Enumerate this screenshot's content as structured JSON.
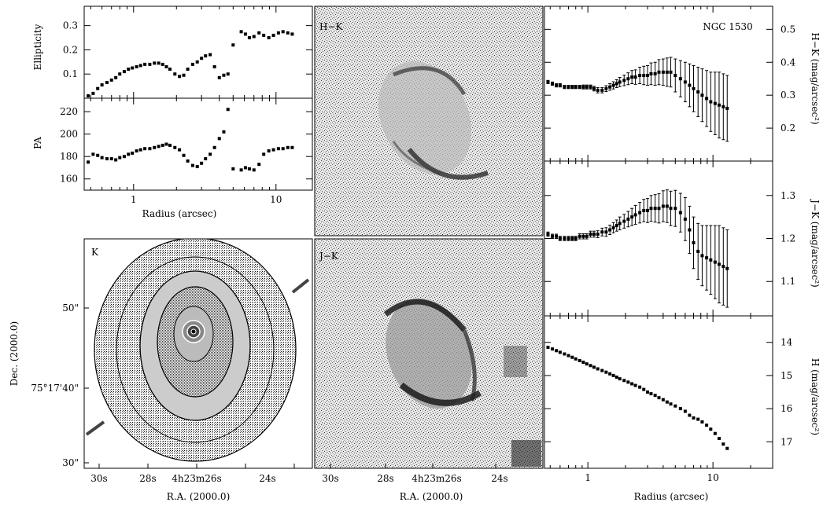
{
  "figure": {
    "object_name": "NGC 1530",
    "ellipticity_panel": {
      "ylabel": "Ellipticity",
      "yticks": [
        "0.1",
        "0.2",
        "0.3"
      ]
    },
    "pa_panel": {
      "ylabel": "PA",
      "yticks": [
        "160",
        "180",
        "200",
        "220"
      ],
      "xticks": [
        "1",
        "10"
      ],
      "xlabel": "Radius (arcsec)"
    },
    "k_image": {
      "label": "K",
      "xticks": [
        "30s",
        "28s",
        "4h23m26s",
        "24s"
      ],
      "xlabel": "R.A. (2000.0)",
      "yticks": [
        "50\"",
        "75°17'40\"",
        "30\""
      ],
      "ylabel": "Dec. (2000.0)"
    },
    "hk_image": {
      "label": "H−K"
    },
    "jk_image": {
      "label": "J−K",
      "xticks": [
        "30s",
        "28s",
        "4h23m26s",
        "24s"
      ],
      "xlabel": "R.A. (2000.0)"
    },
    "hk_profile": {
      "ylabel": "H−K (mag/arcsec²)",
      "yticks": [
        "0.2",
        "0.3",
        "0.4",
        "0.5"
      ]
    },
    "jk_profile": {
      "ylabel": "J−K (mag/arcsec²)",
      "yticks": [
        "1.1",
        "1.2",
        "1.3"
      ]
    },
    "h_profile": {
      "ylabel": "H (mag/arcsec²)",
      "yticks": [
        "14",
        "15",
        "16",
        "17"
      ],
      "xticks": [
        "1",
        "10"
      ],
      "xlabel": "Radius (arcsec)"
    }
  },
  "chart_data": [
    {
      "type": "scatter",
      "title": "",
      "xlabel": "",
      "ylabel": "Ellipticity",
      "xscale": "log",
      "xlim": [
        0.45,
        18
      ],
      "ylim": [
        0.0,
        0.38
      ],
      "x": [
        0.48,
        0.52,
        0.56,
        0.6,
        0.65,
        0.7,
        0.75,
        0.8,
        0.86,
        0.92,
        0.98,
        1.05,
        1.12,
        1.2,
        1.3,
        1.4,
        1.5,
        1.6,
        1.7,
        1.8,
        1.95,
        2.1,
        2.25,
        2.4,
        2.6,
        2.8,
        3.0,
        3.2,
        3.45,
        3.7,
        4.0,
        4.3,
        4.6,
        5.0,
        5.7,
        6.1,
        6.5,
        7.0,
        7.6,
        8.2,
        8.9,
        9.6,
        10.4,
        11.2,
        12.1,
        13.0
      ],
      "y": [
        0.01,
        0.02,
        0.04,
        0.055,
        0.065,
        0.075,
        0.085,
        0.1,
        0.11,
        0.12,
        0.125,
        0.13,
        0.135,
        0.14,
        0.14,
        0.145,
        0.145,
        0.14,
        0.13,
        0.12,
        0.1,
        0.09,
        0.095,
        0.12,
        0.14,
        0.15,
        0.165,
        0.175,
        0.18,
        0.13,
        0.085,
        0.095,
        0.1,
        0.22,
        0.275,
        0.265,
        0.25,
        0.255,
        0.27,
        0.26,
        0.25,
        0.26,
        0.27,
        0.275,
        0.27,
        0.265
      ]
    },
    {
      "type": "scatter",
      "title": "",
      "xlabel": "Radius (arcsec)",
      "ylabel": "PA",
      "xscale": "log",
      "xlim": [
        0.45,
        18
      ],
      "ylim": [
        150,
        232
      ],
      "x": [
        0.48,
        0.52,
        0.56,
        0.6,
        0.65,
        0.7,
        0.75,
        0.8,
        0.86,
        0.92,
        0.98,
        1.05,
        1.12,
        1.2,
        1.3,
        1.4,
        1.5,
        1.6,
        1.7,
        1.8,
        1.95,
        2.1,
        2.25,
        2.4,
        2.6,
        2.8,
        3.0,
        3.2,
        3.45,
        3.7,
        4.0,
        4.3,
        4.6,
        5.0,
        5.7,
        6.1,
        6.5,
        7.0,
        7.6,
        8.2,
        8.9,
        9.6,
        10.4,
        11.2,
        12.1,
        13.0
      ],
      "y": [
        175,
        182,
        181,
        179,
        178,
        178,
        177,
        179,
        180,
        182,
        183,
        185,
        186,
        187,
        187,
        188,
        189,
        190,
        191,
        190,
        188,
        186,
        181,
        176,
        172,
        171,
        174,
        178,
        182,
        188,
        196,
        202,
        222,
        169,
        168,
        170,
        169,
        168,
        173,
        182,
        185,
        186,
        187,
        187,
        188,
        188
      ]
    },
    {
      "type": "scatter",
      "title": "",
      "xlabel": "",
      "ylabel": "H−K (mag/arcsec²)",
      "xscale": "log",
      "xlim": [
        0.45,
        30
      ],
      "ylim": [
        0.1,
        0.57
      ],
      "x": [
        0.48,
        0.52,
        0.56,
        0.6,
        0.65,
        0.7,
        0.75,
        0.8,
        0.86,
        0.92,
        0.98,
        1.05,
        1.12,
        1.2,
        1.3,
        1.4,
        1.5,
        1.6,
        1.7,
        1.8,
        1.95,
        2.1,
        2.25,
        2.4,
        2.6,
        2.8,
        3.0,
        3.2,
        3.45,
        3.7,
        4.0,
        4.3,
        4.6,
        5.0,
        5.5,
        6.0,
        6.5,
        7.0,
        7.6,
        8.2,
        8.9,
        9.6,
        10.4,
        11.2,
        12.1,
        13.0
      ],
      "y": [
        0.34,
        0.335,
        0.33,
        0.33,
        0.325,
        0.325,
        0.325,
        0.325,
        0.325,
        0.325,
        0.325,
        0.325,
        0.32,
        0.315,
        0.315,
        0.32,
        0.325,
        0.33,
        0.335,
        0.34,
        0.345,
        0.35,
        0.355,
        0.355,
        0.36,
        0.36,
        0.36,
        0.365,
        0.365,
        0.37,
        0.37,
        0.37,
        0.37,
        0.36,
        0.35,
        0.34,
        0.33,
        0.32,
        0.31,
        0.3,
        0.29,
        0.28,
        0.275,
        0.27,
        0.265,
        0.26
      ],
      "yerr": [
        0.005,
        0.005,
        0.005,
        0.005,
        0.005,
        0.005,
        0.005,
        0.005,
        0.005,
        0.006,
        0.006,
        0.006,
        0.007,
        0.008,
        0.008,
        0.009,
        0.01,
        0.011,
        0.012,
        0.014,
        0.016,
        0.018,
        0.02,
        0.022,
        0.025,
        0.028,
        0.03,
        0.033,
        0.035,
        0.038,
        0.04,
        0.043,
        0.045,
        0.05,
        0.055,
        0.06,
        0.065,
        0.07,
        0.075,
        0.08,
        0.085,
        0.09,
        0.095,
        0.1,
        0.1,
        0.1
      ]
    },
    {
      "type": "scatter",
      "title": "",
      "xlabel": "",
      "ylabel": "J−K (mag/arcsec²)",
      "xscale": "log",
      "xlim": [
        0.45,
        30
      ],
      "ylim": [
        1.02,
        1.38
      ],
      "x": [
        0.48,
        0.52,
        0.56,
        0.6,
        0.65,
        0.7,
        0.75,
        0.8,
        0.86,
        0.92,
        0.98,
        1.05,
        1.12,
        1.2,
        1.3,
        1.4,
        1.5,
        1.6,
        1.7,
        1.8,
        1.95,
        2.1,
        2.25,
        2.4,
        2.6,
        2.8,
        3.0,
        3.2,
        3.45,
        3.7,
        4.0,
        4.3,
        4.6,
        5.0,
        5.5,
        6.0,
        6.5,
        7.0,
        7.6,
        8.2,
        8.9,
        9.6,
        10.4,
        11.2,
        12.1,
        13.0
      ],
      "y": [
        1.21,
        1.205,
        1.205,
        1.2,
        1.2,
        1.2,
        1.2,
        1.2,
        1.205,
        1.205,
        1.205,
        1.21,
        1.21,
        1.21,
        1.215,
        1.215,
        1.22,
        1.225,
        1.23,
        1.235,
        1.24,
        1.245,
        1.25,
        1.255,
        1.26,
        1.265,
        1.265,
        1.27,
        1.27,
        1.27,
        1.275,
        1.275,
        1.27,
        1.27,
        1.26,
        1.245,
        1.22,
        1.19,
        1.17,
        1.16,
        1.155,
        1.15,
        1.145,
        1.14,
        1.135,
        1.13
      ],
      "yerr": [
        0.005,
        0.005,
        0.005,
        0.005,
        0.005,
        0.005,
        0.005,
        0.005,
        0.006,
        0.006,
        0.006,
        0.007,
        0.007,
        0.008,
        0.009,
        0.01,
        0.011,
        0.012,
        0.013,
        0.015,
        0.016,
        0.018,
        0.02,
        0.022,
        0.024,
        0.026,
        0.028,
        0.03,
        0.032,
        0.034,
        0.036,
        0.038,
        0.04,
        0.042,
        0.045,
        0.05,
        0.055,
        0.06,
        0.065,
        0.07,
        0.075,
        0.08,
        0.085,
        0.09,
        0.09,
        0.09
      ]
    },
    {
      "type": "scatter",
      "title": "",
      "xlabel": "Radius (arcsec)",
      "ylabel": "H (mag/arcsec²)",
      "xscale": "log",
      "xlim": [
        0.45,
        30
      ],
      "ylim": [
        17.8,
        13.2
      ],
      "x": [
        0.48,
        0.52,
        0.56,
        0.6,
        0.65,
        0.7,
        0.75,
        0.8,
        0.86,
        0.92,
        0.98,
        1.05,
        1.12,
        1.2,
        1.3,
        1.4,
        1.5,
        1.6,
        1.7,
        1.8,
        1.95,
        2.1,
        2.25,
        2.4,
        2.6,
        2.8,
        3.0,
        3.2,
        3.45,
        3.7,
        4.0,
        4.3,
        4.6,
        5.0,
        5.5,
        6.0,
        6.5,
        7.0,
        7.6,
        8.2,
        8.9,
        9.6,
        10.4,
        11.2,
        12.1,
        13.0
      ],
      "y": [
        14.15,
        14.2,
        14.25,
        14.3,
        14.35,
        14.4,
        14.45,
        14.5,
        14.55,
        14.6,
        14.65,
        14.7,
        14.75,
        14.8,
        14.85,
        14.9,
        14.95,
        15.0,
        15.05,
        15.1,
        15.15,
        15.2,
        15.25,
        15.3,
        15.35,
        15.42,
        15.5,
        15.55,
        15.6,
        15.67,
        15.73,
        15.8,
        15.86,
        15.92,
        16.0,
        16.08,
        16.2,
        16.28,
        16.32,
        16.4,
        16.5,
        16.62,
        16.75,
        16.9,
        17.07,
        17.2
      ]
    }
  ]
}
